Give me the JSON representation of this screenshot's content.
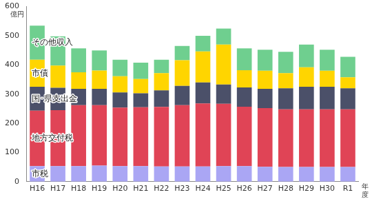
{
  "chart_data": {
    "type": "bar",
    "stacked": true,
    "grid": false,
    "y_label": "億円",
    "x_label": "年度",
    "categories": [
      "H16",
      "H17",
      "H18",
      "H19",
      "H20",
      "H21",
      "H22",
      "H23",
      "H24",
      "H25",
      "H26",
      "H27",
      "H28",
      "H29",
      "H30",
      "R1"
    ],
    "ylim": [
      0,
      600
    ],
    "yticks": [
      0,
      100,
      200,
      300,
      400,
      500,
      600
    ],
    "series": [
      {
        "name": "市税",
        "color": "#aaa6f4",
        "values": [
          53,
          53,
          53,
          55,
          53,
          53,
          52,
          52,
          52,
          53,
          53,
          51,
          50,
          50,
          50,
          50
        ]
      },
      {
        "name": "地方交付税",
        "color": "#e04456",
        "values": [
          190,
          192,
          209,
          207,
          201,
          202,
          204,
          210,
          216,
          214,
          204,
          201,
          198,
          198,
          198,
          198
        ]
      },
      {
        "name": "国･県支出金",
        "color": "#4b5069",
        "values": [
          82,
          77,
          56,
          56,
          52,
          48,
          57,
          66,
          72,
          66,
          66,
          66,
          72,
          77,
          77,
          72
        ]
      },
      {
        "name": "市債",
        "color": "#ffd500",
        "values": [
          93,
          76,
          57,
          63,
          55,
          49,
          59,
          88,
          106,
          137,
          59,
          62,
          52,
          67,
          55,
          38
        ]
      },
      {
        "name": "その他収入",
        "color": "#6fcf8f",
        "values": [
          117,
          100,
          82,
          69,
          57,
          56,
          46,
          49,
          54,
          55,
          75,
          72,
          73,
          78,
          72,
          70
        ]
      }
    ]
  }
}
